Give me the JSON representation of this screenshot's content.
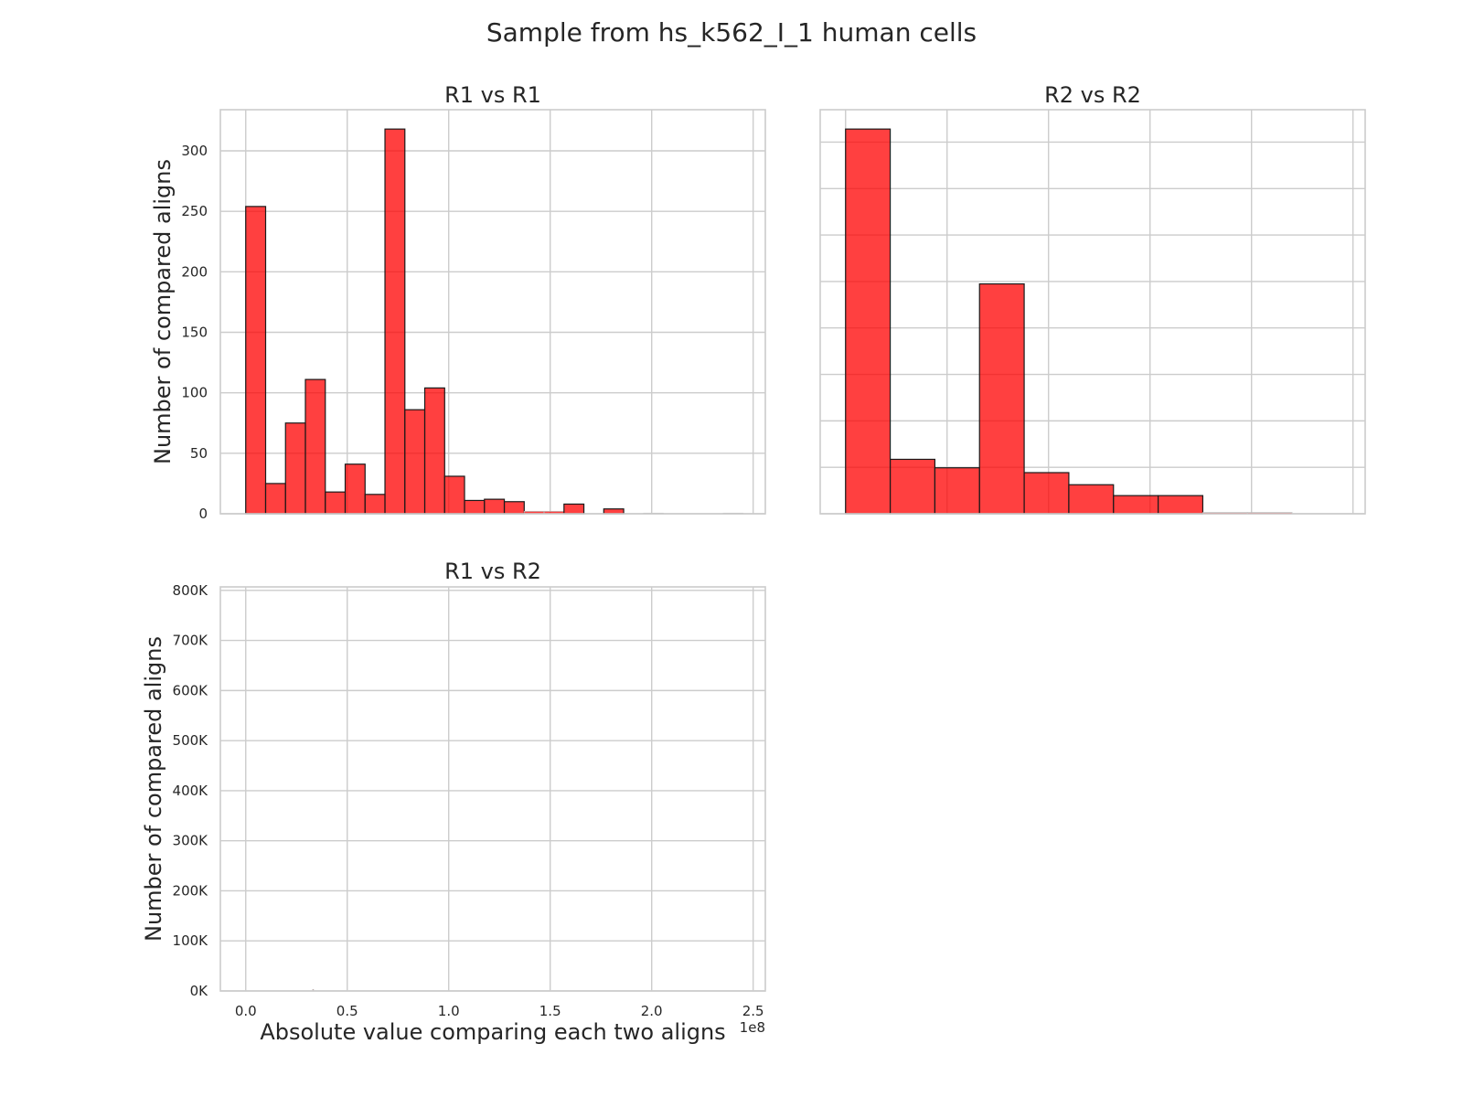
{
  "figure": {
    "title": "Sample from hs_k562_I_1 human cells"
  },
  "chart_data": [
    {
      "type": "bar",
      "title": "R1 vs R1",
      "xlabel": "",
      "ylabel": "Number of compared aligns",
      "xlim": [
        -0.125,
        2.56
      ],
      "ylim": [
        0,
        334
      ],
      "x_offset_label": "",
      "x_ticks": [],
      "y_ticks": [
        {
          "value": 0,
          "label": "0"
        },
        {
          "value": 50,
          "label": "50"
        },
        {
          "value": 100,
          "label": "100"
        },
        {
          "value": 150,
          "label": "150"
        },
        {
          "value": 200,
          "label": "200"
        },
        {
          "value": 250,
          "label": "250"
        },
        {
          "value": 300,
          "label": "300"
        }
      ],
      "grid_x": [
        0,
        0.5,
        1.0,
        1.5,
        2.0,
        2.5
      ],
      "grid_y": [
        0,
        50,
        100,
        150,
        200,
        250,
        300
      ],
      "bins": [
        {
          "x0": 0.0,
          "x1": 0.098,
          "count": 254
        },
        {
          "x0": 0.098,
          "x1": 0.196,
          "count": 25
        },
        {
          "x0": 0.196,
          "x1": 0.294,
          "count": 75
        },
        {
          "x0": 0.294,
          "x1": 0.392,
          "count": 111
        },
        {
          "x0": 0.392,
          "x1": 0.49,
          "count": 18
        },
        {
          "x0": 0.49,
          "x1": 0.588,
          "count": 41
        },
        {
          "x0": 0.588,
          "x1": 0.686,
          "count": 16
        },
        {
          "x0": 0.686,
          "x1": 0.784,
          "count": 318
        },
        {
          "x0": 0.784,
          "x1": 0.882,
          "count": 86
        },
        {
          "x0": 0.882,
          "x1": 0.98,
          "count": 104
        },
        {
          "x0": 0.98,
          "x1": 1.078,
          "count": 31
        },
        {
          "x0": 1.078,
          "x1": 1.176,
          "count": 11
        },
        {
          "x0": 1.176,
          "x1": 1.274,
          "count": 12
        },
        {
          "x0": 1.274,
          "x1": 1.372,
          "count": 10
        },
        {
          "x0": 1.372,
          "x1": 1.47,
          "count": 2
        },
        {
          "x0": 1.47,
          "x1": 1.568,
          "count": 2
        },
        {
          "x0": 1.568,
          "x1": 1.666,
          "count": 8
        },
        {
          "x0": 1.666,
          "x1": 1.764,
          "count": 0
        },
        {
          "x0": 1.764,
          "x1": 1.862,
          "count": 4
        },
        {
          "x0": 1.862,
          "x1": 1.96,
          "count": 0
        },
        {
          "x0": 1.96,
          "x1": 2.058,
          "count": 0.5
        },
        {
          "x0": 2.058,
          "x1": 2.156,
          "count": 0
        },
        {
          "x0": 2.156,
          "x1": 2.254,
          "count": 0
        },
        {
          "x0": 2.254,
          "x1": 2.352,
          "count": 0
        },
        {
          "x0": 2.352,
          "x1": 2.45,
          "count": 0.5
        }
      ]
    },
    {
      "type": "bar",
      "title": "R2 vs R2",
      "xlabel": "",
      "ylabel": "",
      "xlim": [
        -0.125,
        2.56
      ],
      "ylim": [
        0,
        334
      ],
      "x_offset_label": "",
      "x_ticks": [],
      "y_ticks": [],
      "grid_x": [
        0,
        0.5,
        1.0,
        1.5,
        2.0,
        2.5
      ],
      "grid_y": [
        0,
        38.4,
        76.8,
        115.2,
        153.6,
        192.0,
        230.4,
        268.8,
        307.2
      ],
      "bins": [
        {
          "x0": 0.0,
          "x1": 0.22,
          "count": 318
        },
        {
          "x0": 0.22,
          "x1": 0.44,
          "count": 45
        },
        {
          "x0": 0.44,
          "x1": 0.66,
          "count": 38
        },
        {
          "x0": 0.66,
          "x1": 0.88,
          "count": 190
        },
        {
          "x0": 0.88,
          "x1": 1.1,
          "count": 34
        },
        {
          "x0": 1.1,
          "x1": 1.32,
          "count": 24
        },
        {
          "x0": 1.32,
          "x1": 1.54,
          "count": 15
        },
        {
          "x0": 1.54,
          "x1": 1.76,
          "count": 15
        },
        {
          "x0": 1.76,
          "x1": 1.98,
          "count": 1
        },
        {
          "x0": 1.98,
          "x1": 2.2,
          "count": 1
        }
      ]
    },
    {
      "type": "bar",
      "title": "R1 vs R2",
      "xlabel": "Absolute value comparing each two aligns",
      "ylabel": "Number of compared aligns",
      "xlim": [
        -0.125,
        2.56
      ],
      "ylim": [
        0,
        807000
      ],
      "x_offset_label": "1e8",
      "x_ticks": [
        {
          "value": 0.0,
          "label": "0.0"
        },
        {
          "value": 0.5,
          "label": "0.5"
        },
        {
          "value": 1.0,
          "label": "1.0"
        },
        {
          "value": 1.5,
          "label": "1.5"
        },
        {
          "value": 2.0,
          "label": "2.0"
        },
        {
          "value": 2.5,
          "label": "2.5"
        }
      ],
      "y_ticks": [
        {
          "value": 0,
          "label": "0K"
        },
        {
          "value": 100000,
          "label": "100K"
        },
        {
          "value": 200000,
          "label": "200K"
        },
        {
          "value": 300000,
          "label": "300K"
        },
        {
          "value": 400000,
          "label": "400K"
        },
        {
          "value": 500000,
          "label": "500K"
        },
        {
          "value": 600000,
          "label": "600K"
        },
        {
          "value": 700000,
          "label": "700K"
        },
        {
          "value": 800000,
          "label": "800K"
        }
      ],
      "grid_x": [
        0,
        0.5,
        1.0,
        1.5,
        2.0,
        2.5
      ],
      "grid_y": [
        0,
        100000,
        200000,
        300000,
        400000,
        500000,
        600000,
        700000,
        800000
      ],
      "bins": [
        {
          "x0": 0.33,
          "x1": 0.334,
          "count": 3000
        }
      ]
    }
  ],
  "style": {
    "bar_fill": "#ff0000",
    "bar_opacity": 0.75,
    "bar_edge": "#1a1a1a",
    "grid_color": "#cccccc",
    "text_color": "#262626"
  }
}
